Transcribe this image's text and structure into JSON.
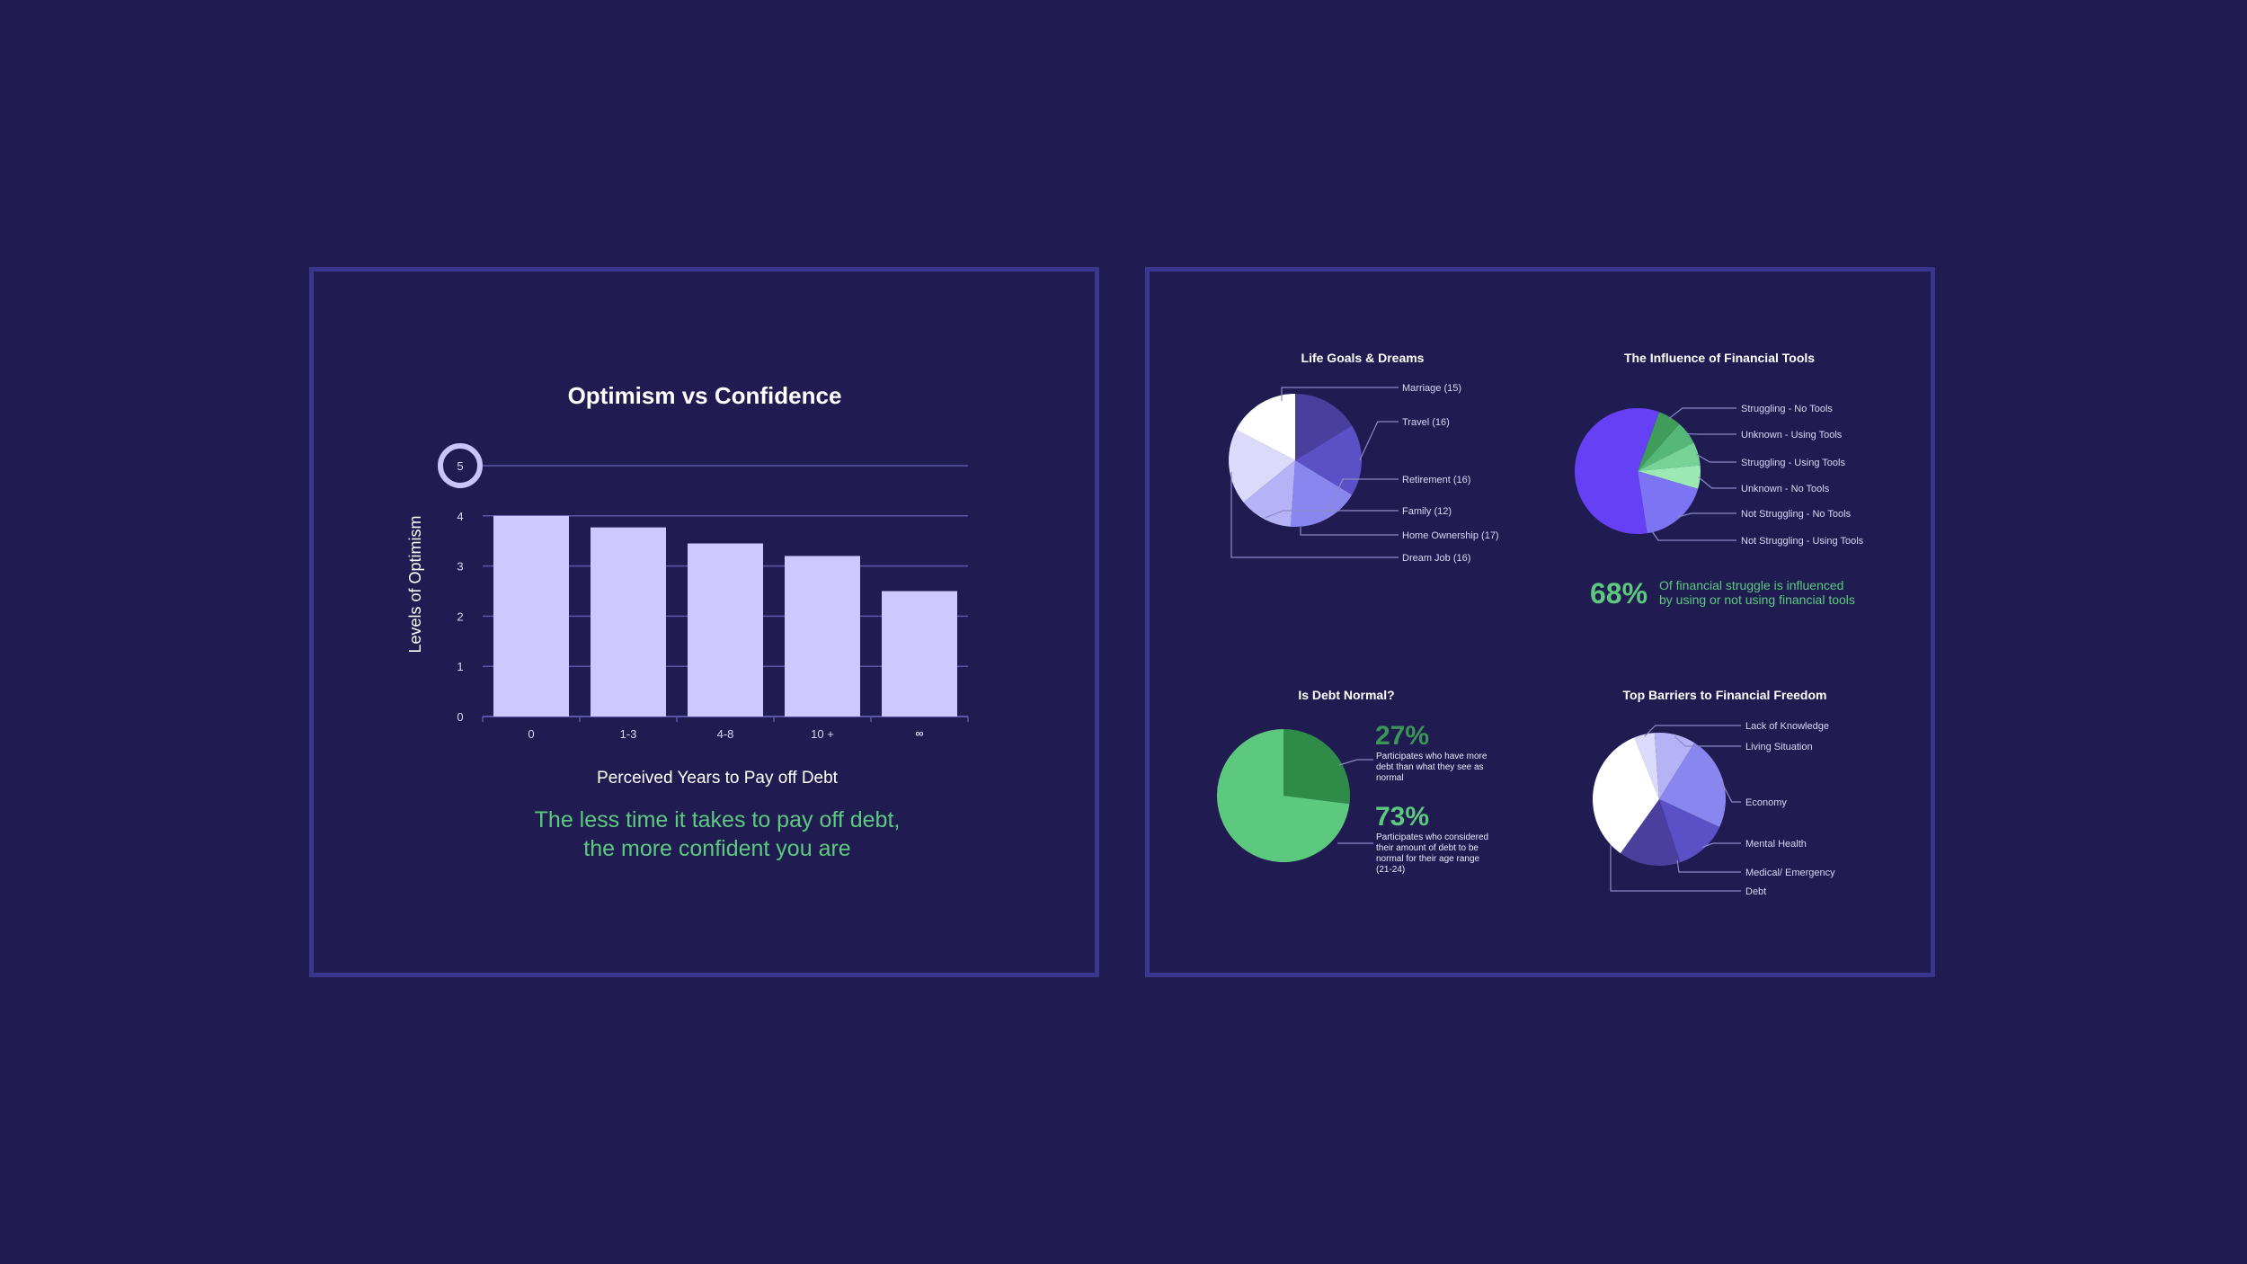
{
  "chart_data": [
    {
      "type": "bar",
      "title": "Optimism vs Confidence",
      "xlabel": "Perceived Years to Pay off Debt",
      "ylabel": "Levels of Optimism",
      "categories": [
        "0",
        "1-3",
        "4-8",
        "10 +",
        "∞"
      ],
      "values": [
        4.0,
        3.77,
        3.45,
        3.2,
        2.5
      ],
      "ylim": [
        0,
        5
      ],
      "yticks": [
        "0",
        "1",
        "2",
        "3",
        "4",
        "5"
      ],
      "caption_lines": [
        "The less time it takes to pay off debt,",
        "the more confident you are"
      ],
      "colors": {
        "bar": "#cdc8ff",
        "grid": "#5b56a8",
        "caption": "#5cc97e"
      }
    },
    {
      "type": "pie",
      "title": "Life Goals & Dreams",
      "labels": [
        "Marriage (15)",
        "Travel (16)",
        "Retirement (16)",
        "Family (12)",
        "Home Ownership (17)",
        "Dream Job (16)"
      ],
      "values": [
        15,
        16,
        16,
        12,
        17,
        16
      ],
      "colors": [
        "#4a3f9c",
        "#5b50c6",
        "#8a86f0",
        "#b6b2f6",
        "#dcdafa",
        "#ffffff"
      ]
    },
    {
      "type": "pie",
      "title": "The Influence of Financial Tools",
      "labels": [
        "Struggling - No Tools",
        "Unknown - Using Tools",
        "Struggling - Using Tools",
        "Unknown - No Tools",
        "Not Struggling - No Tools",
        "Not Struggling - Using Tools"
      ],
      "values": [
        6,
        6,
        6,
        6,
        18,
        58
      ],
      "colors": [
        "#3f9c5a",
        "#55b878",
        "#77d497",
        "#9ce9b4",
        "#7c74f3",
        "#6540f5"
      ],
      "stat": {
        "value": "68%",
        "text_lines": [
          "Of financial struggle is influenced",
          "by using or not using financial tools"
        ]
      }
    },
    {
      "type": "pie",
      "title": "Is Debt Normal?",
      "labels": [
        "Participates who have more debt than what they see as normal",
        "Participates who considered their amount of debt to be normal for their age range (21-24)"
      ],
      "values": [
        27,
        73
      ],
      "colors": [
        "#2e8c48",
        "#5cc97e"
      ],
      "stats": [
        {
          "value": "27%",
          "text_lines": [
            "Participates who have more",
            "debt than what they see as",
            "normal"
          ]
        },
        {
          "value": "73%",
          "text_lines": [
            "Participates who considered",
            "their amount of debt to be",
            "normal for their age range",
            "(21-24)"
          ]
        }
      ]
    },
    {
      "type": "pie",
      "title": "Top Barriers to Financial Freedom",
      "labels": [
        "Lack of Knowledge",
        "Living Situation",
        "Economy",
        "Mental Health",
        "Medical/ Emergency",
        "Debt"
      ],
      "values": [
        5,
        10,
        23,
        13,
        15,
        34
      ],
      "colors": [
        "#dcdafa",
        "#b6b2f6",
        "#8a86f0",
        "#5b50c6",
        "#4a3f9c",
        "#ffffff"
      ]
    }
  ],
  "colors": {
    "background": "#201c52",
    "panel_border": "#3b3590"
  }
}
